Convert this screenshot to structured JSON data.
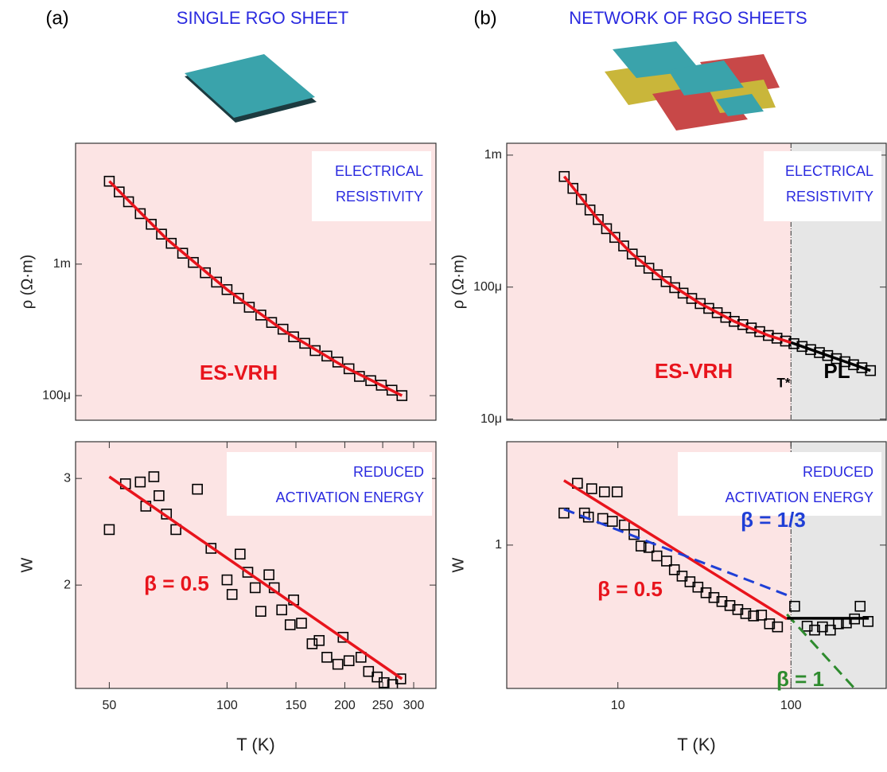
{
  "panels": [
    {
      "label": "(a)",
      "heading": "SINGLE RGO SHEET"
    },
    {
      "label": "(b)",
      "heading": "NETWORK OF RGO SHEETS"
    }
  ],
  "chart_data": [
    {
      "type": "scatter",
      "xscale": "log",
      "yscale": "log",
      "ylabel": "ρ (Ω·m)",
      "xlim": [
        41,
        342
      ],
      "ylim": [
        6.5e-05,
        0.0083
      ],
      "yticks": [
        {
          "value": 0.001,
          "label": "1m"
        },
        {
          "value": 0.0001,
          "label": "100μ"
        }
      ],
      "box_text": [
        "ELECTRICAL",
        "RESISTIVITY"
      ],
      "annotations": [
        {
          "text": "ES-VRH",
          "color": "#e8141c"
        }
      ],
      "series": [
        {
          "style": "markers",
          "color": "#000000",
          "x": [
            50,
            53,
            56,
            60,
            64,
            68,
            72,
            77,
            82,
            88,
            94,
            100,
            107,
            114,
            122,
            130,
            139,
            148,
            158,
            168,
            180,
            192,
            205,
            218,
            233,
            248,
            264,
            280
          ],
          "values": [
            0.00427,
            0.00354,
            0.00298,
            0.00242,
            0.00201,
            0.00169,
            0.00144,
            0.00121,
            0.00103,
            0.00086,
            0.00073,
            0.00064,
            0.00055,
            0.00047,
            0.00041,
            0.00036,
            0.00032,
            0.00028,
            0.00025,
            0.00022,
            0.0002,
            0.00018,
            0.00016,
            0.00014,
            0.00013,
            0.00012,
            0.00011,
            0.0001
          ]
        },
        {
          "style": "solid",
          "color": "#e8141c",
          "x": [
            50,
            70,
            100,
            140,
            200,
            280
          ],
          "values": [
            0.00427,
            0.00156,
            0.00064,
            0.00031,
            0.000165,
            0.0001
          ]
        }
      ]
    },
    {
      "type": "scatter",
      "xscale": "log",
      "yscale": "log",
      "ylabel": "W",
      "xlabel": "T (K)",
      "xlim": [
        41,
        342
      ],
      "ylim": [
        1.35,
        3.45
      ],
      "xticks": [
        50,
        100,
        150,
        200,
        250,
        300
      ],
      "yticks": [
        2,
        3
      ],
      "box_text": [
        "REDUCED",
        "ACTIVATION ENERGY"
      ],
      "annotations": [
        {
          "text": "β = 0.5",
          "color": "#e8141c"
        }
      ],
      "series": [
        {
          "style": "markers",
          "color": "#000000",
          "x": [
            50,
            55,
            60,
            62,
            65,
            67,
            70,
            74,
            84,
            91,
            100,
            103,
            108,
            113,
            118,
            122,
            128,
            132,
            138,
            145,
            148,
            155,
            165,
            172,
            180,
            192,
            198,
            205,
            220,
            230,
            242,
            252,
            265,
            278
          ],
          "values": [
            2.47,
            2.94,
            2.96,
            2.7,
            3.02,
            2.81,
            2.62,
            2.47,
            2.88,
            2.3,
            2.04,
            1.93,
            2.25,
            2.1,
            1.98,
            1.81,
            2.08,
            1.98,
            1.82,
            1.72,
            1.89,
            1.73,
            1.6,
            1.62,
            1.52,
            1.48,
            1.64,
            1.5,
            1.52,
            1.44,
            1.41,
            1.38,
            1.37,
            1.4
          ]
        },
        {
          "style": "solid",
          "color": "#e8141c",
          "x": [
            50,
            280
          ],
          "values": [
            3.02,
            1.4
          ]
        }
      ]
    },
    {
      "type": "scatter",
      "xscale": "log",
      "yscale": "log",
      "ylabel": "ρ (Ω·m)",
      "split_x": 100,
      "xlim": [
        2.28,
        355
      ],
      "ylim": [
        9.8e-06,
        0.00123
      ],
      "yticks": [
        {
          "value": 0.001,
          "label": "1m"
        },
        {
          "value": 0.0001,
          "label": "100μ"
        },
        {
          "value": 1e-05,
          "label": "10μ"
        }
      ],
      "box_text": [
        "ELECTRICAL",
        "RESISTIVITY"
      ],
      "annotations": [
        {
          "text": "ES-VRH",
          "color": "#e8141c"
        },
        {
          "text": "T*",
          "color": "#000000"
        },
        {
          "text": "PL",
          "color": "#000000"
        }
      ],
      "series": [
        {
          "style": "markers",
          "color": "#000000",
          "x": [
            4.9,
            5.5,
            6.15,
            6.9,
            7.7,
            8.6,
            9.6,
            10.8,
            12.1,
            13.5,
            15.1,
            16.9,
            19,
            21.3,
            23.8,
            26.7,
            29.9,
            33.5,
            37.5,
            42,
            47,
            52.7,
            59,
            66,
            74,
            83,
            93,
            104,
            116,
            130,
            146,
            163,
            183,
            205,
            230,
            257,
            288
          ],
          "values": [
            0.000689,
            0.00056,
            0.000462,
            0.000384,
            0.000325,
            0.000277,
            0.000238,
            0.000205,
            0.000178,
            0.000157,
            0.000139,
            0.000124,
            0.00011,
            9.9e-05,
            9e-05,
            8.2e-05,
            7.5e-05,
            6.9e-05,
            6.4e-05,
            5.9e-05,
            5.5e-05,
            5.2e-05,
            4.9e-05,
            4.6e-05,
            4.3e-05,
            4.1e-05,
            3.9e-05,
            3.73e-05,
            3.55e-05,
            3.36e-05,
            3.19e-05,
            3.03e-05,
            2.87e-05,
            2.72e-05,
            2.58e-05,
            2.45e-05,
            2.33e-05
          ]
        },
        {
          "style": "solid",
          "color": "#e8141c",
          "x": [
            4.9,
            7.7,
            12.1,
            19,
            29.9,
            47,
            74,
            100
          ],
          "values": [
            0.000689,
            0.000325,
            0.000178,
            0.00011,
            7.5e-05,
            5.5e-05,
            4.3e-05,
            3.8e-05
          ]
        },
        {
          "style": "solid",
          "color": "#000000",
          "x": [
            100,
            288
          ],
          "values": [
            3.8e-05,
            2.33e-05
          ]
        }
      ]
    },
    {
      "type": "scatter",
      "xscale": "log",
      "yscale": "log",
      "ylabel": "W",
      "xlabel": "T (K)",
      "split_x": 100,
      "xlim": [
        2.28,
        355
      ],
      "ylim": [
        0.215,
        3.03
      ],
      "xticks": [
        10,
        100
      ],
      "yticks": [
        1
      ],
      "box_text": [
        "REDUCED",
        "ACTIVATION ENERGY"
      ],
      "annotations": [
        {
          "text": "β = 1/3",
          "color": "#1f3fd6"
        },
        {
          "text": "β = 0.5",
          "color": "#e8141c"
        },
        {
          "text": "β = 1",
          "color": "#2e8b2e"
        }
      ],
      "series": [
        {
          "style": "markers",
          "color": "#000000",
          "x": [
            4.88,
            5.84,
            6.41,
            7.06,
            8.36,
            9.9,
            6.76,
            8.18,
            9.29,
            10.9,
            12.4,
            13.6,
            15.1,
            16.8,
            19.1,
            21.2,
            23.5,
            26.1,
            29,
            32.3,
            35.9,
            39.9,
            44.4,
            49.3,
            54.8,
            60.8,
            67.6,
            75.2,
            83.6,
            105,
            124,
            137,
            152,
            169,
            188,
            209,
            233,
            251,
            279
          ],
          "values": [
            1.41,
            1.94,
            1.41,
            1.83,
            1.77,
            1.77,
            1.35,
            1.33,
            1.29,
            1.24,
            1.12,
            0.99,
            0.975,
            0.89,
            0.843,
            0.768,
            0.717,
            0.675,
            0.637,
            0.6,
            0.57,
            0.546,
            0.523,
            0.501,
            0.48,
            0.468,
            0.472,
            0.43,
            0.416,
            0.519,
            0.419,
            0.402,
            0.416,
            0.402,
            0.43,
            0.434,
            0.453,
            0.519,
            0.441
          ]
        },
        {
          "style": "solid",
          "color": "#e8141c",
          "x": [
            4.88,
            94.8
          ],
          "values": [
            2.0,
            0.453
          ]
        },
        {
          "style": "dashed",
          "color": "#1f3fd6",
          "x": [
            4.88,
            94.8
          ],
          "values": [
            1.47,
            0.585
          ]
        },
        {
          "style": "dashed",
          "color": "#2e8b2e",
          "x": [
            94.8,
            233
          ],
          "values": [
            0.476,
            0.215
          ]
        },
        {
          "style": "solid",
          "color": "#000000",
          "x": [
            94.8,
            282
          ],
          "values": [
            0.456,
            0.456
          ]
        }
      ]
    }
  ]
}
